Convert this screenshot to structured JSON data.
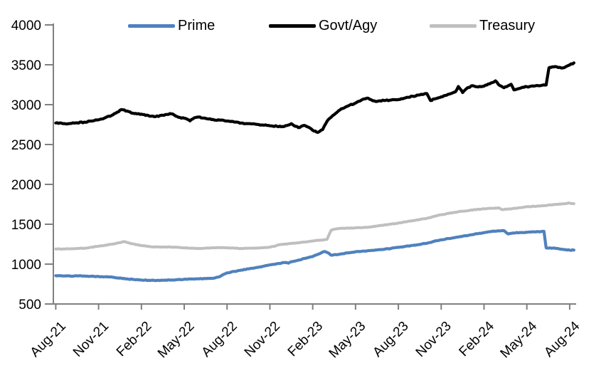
{
  "chart_data": {
    "type": "line",
    "title": "",
    "legend_position": "top",
    "grid": false,
    "background": "#FFFFFF",
    "axis_color": "#808080",
    "x_axis": {
      "tick_labels": [
        "Aug-21",
        "Nov-21",
        "Feb-22",
        "May-22",
        "Aug-22",
        "Nov-22",
        "Feb-23",
        "May-23",
        "Aug-23",
        "Nov-23",
        "Feb-24",
        "May-24",
        "Aug-24"
      ],
      "tick_month_positions": [
        0,
        3,
        6,
        9,
        12,
        15,
        18,
        21,
        24,
        27,
        30,
        33,
        36
      ],
      "label_rotation_deg": -45
    },
    "y_axis": {
      "ticks": [
        500,
        1000,
        1500,
        2000,
        2500,
        3000,
        3500,
        4000
      ],
      "range": [
        500,
        4000
      ]
    },
    "series": [
      {
        "name": "Prime",
        "color": "#4F81BD",
        "points_format": "[months since Aug-2021, value]",
        "points": [
          [
            0,
            855
          ],
          [
            0.5,
            852
          ],
          [
            1,
            850
          ],
          [
            1.5,
            853
          ],
          [
            2,
            852
          ],
          [
            2.5,
            848
          ],
          [
            3,
            845
          ],
          [
            3.5,
            841
          ],
          [
            4,
            835
          ],
          [
            4.5,
            826
          ],
          [
            5,
            815
          ],
          [
            5.5,
            807
          ],
          [
            6,
            800
          ],
          [
            6.5,
            797
          ],
          [
            7,
            795
          ],
          [
            7.5,
            797
          ],
          [
            8,
            800
          ],
          [
            8.5,
            805
          ],
          [
            9,
            810
          ],
          [
            9.5,
            813
          ],
          [
            10,
            815
          ],
          [
            10.5,
            818
          ],
          [
            11,
            822
          ],
          [
            11.5,
            845
          ],
          [
            12,
            890
          ],
          [
            12.5,
            908
          ],
          [
            13,
            925
          ],
          [
            13.5,
            940
          ],
          [
            14,
            955
          ],
          [
            14.5,
            972
          ],
          [
            15,
            990
          ],
          [
            15.5,
            1005
          ],
          [
            16,
            1020
          ],
          [
            16.3,
            1012
          ],
          [
            16.5,
            1030
          ],
          [
            17,
            1050
          ],
          [
            17.5,
            1072
          ],
          [
            18,
            1095
          ],
          [
            18.4,
            1125
          ],
          [
            18.8,
            1158
          ],
          [
            19.1,
            1140
          ],
          [
            19.3,
            1112
          ],
          [
            19.6,
            1120
          ],
          [
            20,
            1128
          ],
          [
            20.5,
            1142
          ],
          [
            21,
            1155
          ],
          [
            21.5,
            1163
          ],
          [
            22,
            1170
          ],
          [
            22.5,
            1178
          ],
          [
            23,
            1185
          ],
          [
            23.5,
            1197
          ],
          [
            24,
            1210
          ],
          [
            24.5,
            1222
          ],
          [
            25,
            1235
          ],
          [
            25.5,
            1247
          ],
          [
            26,
            1262
          ],
          [
            26.5,
            1285
          ],
          [
            27,
            1305
          ],
          [
            27.5,
            1320
          ],
          [
            28,
            1335
          ],
          [
            28.5,
            1350
          ],
          [
            29,
            1365
          ],
          [
            29.5,
            1380
          ],
          [
            30,
            1395
          ],
          [
            30.5,
            1408
          ],
          [
            31,
            1418
          ],
          [
            31.4,
            1420
          ],
          [
            31.7,
            1378
          ],
          [
            32,
            1390
          ],
          [
            32.5,
            1396
          ],
          [
            33,
            1400
          ],
          [
            33.5,
            1405
          ],
          [
            34,
            1408
          ],
          [
            34.2,
            1410
          ],
          [
            34.35,
            1205
          ],
          [
            34.7,
            1200
          ],
          [
            35,
            1198
          ],
          [
            35.5,
            1185
          ],
          [
            36,
            1175
          ],
          [
            36.3,
            1176
          ]
        ]
      },
      {
        "name": "Govt/Agy",
        "color": "#000000",
        "points_format": "[months since Aug-2021, value]",
        "points": [
          [
            0,
            2770
          ],
          [
            0.5,
            2762
          ],
          [
            1,
            2763
          ],
          [
            1.5,
            2772
          ],
          [
            2,
            2780
          ],
          [
            2.5,
            2795
          ],
          [
            3,
            2810
          ],
          [
            3.5,
            2838
          ],
          [
            4,
            2872
          ],
          [
            4.3,
            2905
          ],
          [
            4.6,
            2938
          ],
          [
            5,
            2920
          ],
          [
            5.3,
            2895
          ],
          [
            6,
            2880
          ],
          [
            6.5,
            2862
          ],
          [
            7,
            2850
          ],
          [
            7.5,
            2868
          ],
          [
            8,
            2888
          ],
          [
            8.3,
            2870
          ],
          [
            8.6,
            2842
          ],
          [
            9,
            2830
          ],
          [
            9.4,
            2796
          ],
          [
            9.7,
            2835
          ],
          [
            10,
            2845
          ],
          [
            10.5,
            2828
          ],
          [
            11,
            2815
          ],
          [
            11.5,
            2805
          ],
          [
            12,
            2795
          ],
          [
            12.5,
            2782
          ],
          [
            13,
            2770
          ],
          [
            13.5,
            2762
          ],
          [
            14,
            2755
          ],
          [
            14.5,
            2745
          ],
          [
            15,
            2735
          ],
          [
            15.5,
            2728
          ],
          [
            16,
            2725
          ],
          [
            16.5,
            2762
          ],
          [
            16.8,
            2728
          ],
          [
            17,
            2712
          ],
          [
            17.4,
            2740
          ],
          [
            17.7,
            2718
          ],
          [
            18,
            2678
          ],
          [
            18.35,
            2652
          ],
          [
            18.7,
            2688
          ],
          [
            19,
            2790
          ],
          [
            19.3,
            2845
          ],
          [
            19.6,
            2890
          ],
          [
            20,
            2948
          ],
          [
            20.5,
            2985
          ],
          [
            21,
            3020
          ],
          [
            21.4,
            3055
          ],
          [
            21.8,
            3082
          ],
          [
            22.1,
            3062
          ],
          [
            22.4,
            3040
          ],
          [
            22.7,
            3048
          ],
          [
            23,
            3052
          ],
          [
            23.5,
            3058
          ],
          [
            24,
            3065
          ],
          [
            24.5,
            3085
          ],
          [
            25,
            3105
          ],
          [
            25.5,
            3122
          ],
          [
            26,
            3138
          ],
          [
            26.25,
            3052
          ],
          [
            26.6,
            3075
          ],
          [
            27,
            3098
          ],
          [
            27.5,
            3130
          ],
          [
            28,
            3162
          ],
          [
            28.2,
            3228
          ],
          [
            28.5,
            3152
          ],
          [
            28.8,
            3205
          ],
          [
            29.2,
            3238
          ],
          [
            29.6,
            3222
          ],
          [
            30,
            3232
          ],
          [
            30.4,
            3262
          ],
          [
            30.8,
            3298
          ],
          [
            31.1,
            3240
          ],
          [
            31.4,
            3212
          ],
          [
            31.9,
            3255
          ],
          [
            32.1,
            3185
          ],
          [
            32.4,
            3200
          ],
          [
            32.7,
            3218
          ],
          [
            33,
            3225
          ],
          [
            33.5,
            3232
          ],
          [
            34,
            3240
          ],
          [
            34.35,
            3246
          ],
          [
            34.55,
            3462
          ],
          [
            34.8,
            3475
          ],
          [
            35,
            3478
          ],
          [
            35.4,
            3460
          ],
          [
            35.7,
            3472
          ],
          [
            36,
            3498
          ],
          [
            36.3,
            3524
          ]
        ]
      },
      {
        "name": "Treasury",
        "color": "#BFBFBF",
        "points_format": "[months since Aug-2021, value]",
        "points": [
          [
            0,
            1190
          ],
          [
            0.5,
            1190
          ],
          [
            1,
            1192
          ],
          [
            1.5,
            1196
          ],
          [
            2,
            1200
          ],
          [
            2.5,
            1212
          ],
          [
            3,
            1225
          ],
          [
            3.5,
            1238
          ],
          [
            4,
            1252
          ],
          [
            4.4,
            1268
          ],
          [
            4.8,
            1283
          ],
          [
            5.2,
            1262
          ],
          [
            5.6,
            1245
          ],
          [
            6,
            1235
          ],
          [
            6.5,
            1222
          ],
          [
            7,
            1215
          ],
          [
            7.5,
            1214
          ],
          [
            8,
            1215
          ],
          [
            8.5,
            1210
          ],
          [
            9,
            1205
          ],
          [
            9.5,
            1200
          ],
          [
            10,
            1195
          ],
          [
            10.5,
            1200
          ],
          [
            11,
            1205
          ],
          [
            11.5,
            1206
          ],
          [
            12,
            1205
          ],
          [
            12.5,
            1200
          ],
          [
            13,
            1196
          ],
          [
            13.5,
            1198
          ],
          [
            14,
            1200
          ],
          [
            14.5,
            1205
          ],
          [
            15,
            1212
          ],
          [
            15.4,
            1228
          ],
          [
            15.7,
            1245
          ],
          [
            16,
            1250
          ],
          [
            16.5,
            1258
          ],
          [
            17,
            1268
          ],
          [
            17.5,
            1278
          ],
          [
            18,
            1290
          ],
          [
            18.4,
            1298
          ],
          [
            18.8,
            1305
          ],
          [
            19,
            1310
          ],
          [
            19.3,
            1428
          ],
          [
            19.6,
            1440
          ],
          [
            20,
            1448
          ],
          [
            20.5,
            1452
          ],
          [
            21,
            1455
          ],
          [
            21.5,
            1458
          ],
          [
            22,
            1465
          ],
          [
            22.5,
            1478
          ],
          [
            23,
            1490
          ],
          [
            23.5,
            1502
          ],
          [
            24,
            1515
          ],
          [
            24.5,
            1530
          ],
          [
            25,
            1545
          ],
          [
            25.5,
            1560
          ],
          [
            26,
            1575
          ],
          [
            26.5,
            1598
          ],
          [
            27,
            1620
          ],
          [
            27.5,
            1635
          ],
          [
            28,
            1650
          ],
          [
            28.5,
            1663
          ],
          [
            29,
            1675
          ],
          [
            29.5,
            1686
          ],
          [
            30,
            1695
          ],
          [
            30.5,
            1700
          ],
          [
            31,
            1705
          ],
          [
            31.3,
            1683
          ],
          [
            31.6,
            1690
          ],
          [
            32,
            1696
          ],
          [
            32.5,
            1708
          ],
          [
            33,
            1720
          ],
          [
            33.5,
            1725
          ],
          [
            34,
            1730
          ],
          [
            34.5,
            1740
          ],
          [
            35,
            1748
          ],
          [
            35.5,
            1756
          ],
          [
            36,
            1765
          ],
          [
            36.3,
            1758
          ]
        ]
      }
    ]
  },
  "legend": {
    "items": [
      {
        "label": "Prime"
      },
      {
        "label": "Govt/Agy"
      },
      {
        "label": "Treasury"
      }
    ]
  }
}
